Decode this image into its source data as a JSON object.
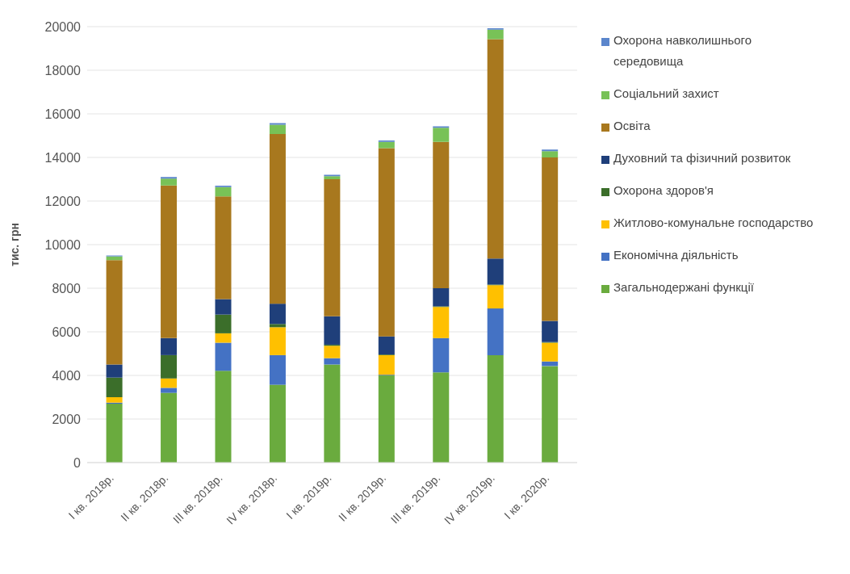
{
  "chart_data": {
    "type": "bar",
    "stacked": true,
    "ylabel": "тис. грн",
    "categories": [
      "I кв. 2018р.",
      "II кв. 2018р.",
      "III кв. 2018р.",
      "IV кв. 2018р.",
      "I кв. 2019р.",
      "II кв. 2019р.",
      "III кв. 2019р.",
      "IV кв. 2019р.",
      "I кв. 2020р."
    ],
    "series": [
      {
        "name": "Загальнодержані функції",
        "color": "#6aab3e",
        "values": [
          2700,
          3200,
          4210,
          3570,
          4500,
          4000,
          4140,
          4930,
          4430
        ]
      },
      {
        "name": "Економічна діяльність",
        "color": "#4472c4",
        "values": [
          50,
          230,
          1290,
          1360,
          290,
          30,
          1570,
          2140,
          210
        ]
      },
      {
        "name": "Житлово-комунальне господарство",
        "color": "#ffc000",
        "values": [
          250,
          430,
          430,
          1280,
          570,
          900,
          1430,
          1070,
          860
        ]
      },
      {
        "name": "Охорона здоров'я",
        "color": "#3b6e2a",
        "values": [
          900,
          1070,
          860,
          150,
          50,
          30,
          30,
          30,
          30
        ]
      },
      {
        "name": "Духовний та фізичний розвиток",
        "color": "#1f3f7a",
        "values": [
          600,
          780,
          710,
          930,
          1300,
          830,
          830,
          1190,
          970
        ]
      },
      {
        "name": "Освіта",
        "color": "#a8781e",
        "values": [
          4790,
          7000,
          4710,
          7780,
          6290,
          8640,
          6710,
          10070,
          7500
        ]
      },
      {
        "name": "Соціальний захист",
        "color": "#78c257",
        "values": [
          170,
          320,
          430,
          430,
          140,
          280,
          650,
          430,
          290
        ]
      },
      {
        "name": "Охорона навколишнього середовища",
        "color": "#5b86cc",
        "values": [
          40,
          70,
          60,
          70,
          60,
          70,
          70,
          70,
          70
        ]
      }
    ],
    "ylim": [
      0,
      20000
    ],
    "yticks": [
      0,
      2000,
      4000,
      6000,
      8000,
      10000,
      12000,
      14000,
      16000,
      18000,
      20000
    ],
    "grid": "y",
    "legend": "right"
  }
}
